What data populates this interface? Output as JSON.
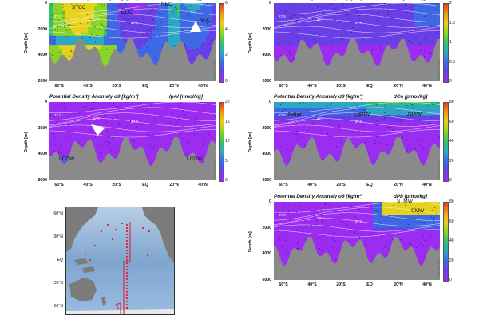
{
  "panels": [
    {
      "id": "gal",
      "title": "Potential Density Anomaly σθ [kg/m³]",
      "variable": "GAl [nmol/kg]",
      "colorbar_ticks": [
        "6",
        "4",
        "2",
        "0"
      ],
      "annotations": [
        "STCC",
        "EUC",
        "NEC",
        "NEC"
      ]
    },
    {
      "id": "dal",
      "title": "Potential Density Anomaly σθ [kg/m³]",
      "variable": "dAl [nmol/kg]",
      "colorbar_ticks": [
        "2",
        "1.5",
        "1",
        "0.5",
        "0"
      ],
      "annotations": []
    },
    {
      "id": "lpal",
      "title": "Potential Density Anomaly σθ [kg/m³]",
      "variable": "lpAl [nmol/kg]",
      "colorbar_ticks": [
        "20",
        "15",
        "10",
        "5",
        "0"
      ],
      "annotations": [
        "LCDW",
        "LCDW"
      ]
    },
    {
      "id": "dco",
      "title": "Potential Density Anomaly σθ [kg/m³]",
      "variable": "dCo [pmol/kg]",
      "colorbar_ticks": [
        "80",
        "60",
        "40",
        "20",
        "0"
      ],
      "annotations": [
        "AAIW",
        "EqPIW",
        "NPIW"
      ]
    },
    {
      "id": "dpb",
      "title": "Potential Density Anomaly σθ [kg/m³]",
      "variable": "dPb [pmol/kg]",
      "colorbar_ticks": [
        "80",
        "60",
        "40",
        "20",
        "0"
      ],
      "annotations": [
        "STMW",
        "CMW"
      ]
    }
  ],
  "axis": {
    "ylabel": "Depth [m]",
    "yticks": [
      "0",
      "2000",
      "4000",
      "6000"
    ],
    "xticks": [
      "60°S",
      "40°S",
      "20°S",
      "EQ",
      "20°N",
      "40°N"
    ]
  },
  "odv_label": "Ocean Data View",
  "contour_labels": [
    "27.6",
    "27.7",
    "27.8"
  ],
  "map": {
    "lat_labels": [
      "60°N",
      "30°N",
      "EQ",
      "30°S",
      "60°S"
    ],
    "station_color": "#e0203a",
    "track_color": "#e0203a"
  },
  "colors": {
    "colormap": [
      "#9b2cf2",
      "#6a3fe8",
      "#3e68e6",
      "#2fa7c4",
      "#2fc26a",
      "#88d427",
      "#e6d21c",
      "#f09a1a",
      "#e8371f"
    ],
    "bathymetry": "#8a8a8a"
  }
}
